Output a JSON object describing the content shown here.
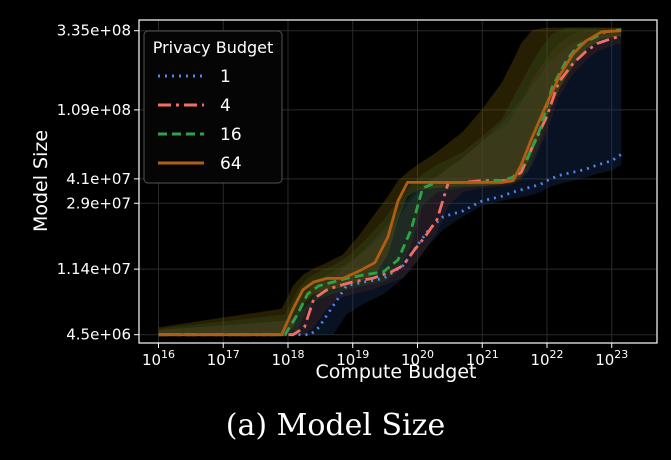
{
  "caption": "(a) Model Size",
  "chart_data": {
    "type": "line",
    "xlabel": "Compute Budget",
    "ylabel": "Model Size",
    "xscale": "log",
    "yscale": "log",
    "xlim": [
      5000000000000000.0,
      5e+23
    ],
    "ylim": [
      4000000.0,
      390000000.0
    ],
    "grid": true,
    "x_ticks": [
      {
        "value": 1e+16,
        "base": "10",
        "exp": "16"
      },
      {
        "value": 1e+17,
        "base": "10",
        "exp": "17"
      },
      {
        "value": 1e+18,
        "base": "10",
        "exp": "18"
      },
      {
        "value": 1e+19,
        "base": "10",
        "exp": "19"
      },
      {
        "value": 1e+20,
        "base": "10",
        "exp": "20"
      },
      {
        "value": 1e+21,
        "base": "10",
        "exp": "21"
      },
      {
        "value": 1e+22,
        "base": "10",
        "exp": "22"
      },
      {
        "value": 1e+23,
        "base": "10",
        "exp": "23"
      }
    ],
    "y_ticks": [
      {
        "value": 4500000.0,
        "label": "4.5e+06"
      },
      {
        "value": 11400000.0,
        "label": "1.14e+07"
      },
      {
        "value": 29000000.0,
        "label": "2.9e+07"
      },
      {
        "value": 41000000.0,
        "label": "4.1e+07"
      },
      {
        "value": 109000000.0,
        "label": "1.09e+08"
      },
      {
        "value": 335000000.0,
        "label": "3.35e+08"
      }
    ],
    "legend": {
      "title": "Privacy Budget",
      "position": "top-left"
    },
    "series": [
      {
        "name": "1",
        "color": "#4f86e8",
        "dash": "2 5",
        "band_color": "#1c3a70",
        "band_opacity": 0.3,
        "x": [
          1e+16,
          1e+18,
          2.2e+18,
          3e+18,
          5e+18,
          8e+18,
          1.5e+19,
          3e+19,
          6e+19,
          1e+20,
          1.5e+20,
          2.5e+20,
          5e+20,
          1e+21,
          2e+21,
          3e+21,
          5e+21,
          8e+21,
          1e+22,
          1.5e+22,
          2.5e+22,
          4e+22,
          6e+22,
          1e+23,
          1.4e+23
        ],
        "y": [
          4500000.0,
          4500000.0,
          4500000.0,
          5000000.0,
          6800000.0,
          9000000.0,
          9500000.0,
          10000000.0,
          12000000.0,
          16000000.0,
          20000000.0,
          24000000.0,
          26000000.0,
          30000000.0,
          32000000.0,
          34000000.0,
          36000000.0,
          38000000.0,
          40000000.0,
          43000000.0,
          45000000.0,
          47000000.0,
          50000000.0,
          53000000.0,
          58000000.0
        ],
        "y_low": [
          4500000.0,
          4500000.0,
          4500000.0,
          4500000.0,
          4500000.0,
          6000000.0,
          7000000.0,
          8000000.0,
          10000000.0,
          13000000.0,
          16000000.0,
          20000000.0,
          24000000.0,
          28000000.0,
          30000000.0,
          31000000.0,
          32000000.0,
          34000000.0,
          36000000.0,
          38000000.0,
          40000000.0,
          42000000.0,
          44000000.0,
          46000000.0,
          50000000.0
        ],
        "y_high": [
          4800000.0,
          5500000.0,
          7000000.0,
          9000000.0,
          10000000.0,
          12000000.0,
          15000000.0,
          20000000.0,
          28000000.0,
          36000000.0,
          40000000.0,
          45000000.0,
          55000000.0,
          70000000.0,
          90000000.0,
          110000000.0,
          140000000.0,
          180000000.0,
          210000000.0,
          240000000.0,
          280000000.0,
          300000000.0,
          310000000.0,
          320000000.0,
          320000000.0
        ]
      },
      {
        "name": "4",
        "color": "#f26e62",
        "dash": "13 5 3 5",
        "band_color": "#5a2a24",
        "band_opacity": 0.3,
        "x": [
          1e+16,
          1.2e+18,
          1.8e+18,
          2.5e+18,
          4e+18,
          6e+18,
          1e+19,
          2e+19,
          4e+19,
          6e+19,
          9e+19,
          1.3e+20,
          2e+20,
          3e+20,
          5e+20,
          1e+21,
          2.5e+21,
          4e+21,
          6e+21,
          1e+22,
          1.5e+22,
          2.5e+22,
          4e+22,
          6e+22,
          1e+23,
          1.4e+23
        ],
        "y": [
          4500000.0,
          4500000.0,
          5000000.0,
          7500000.0,
          8500000.0,
          9000000.0,
          9500000.0,
          10000000.0,
          11000000.0,
          12000000.0,
          15000000.0,
          18000000.0,
          23000000.0,
          39000000.0,
          39000000.0,
          40000000.0,
          40000000.0,
          45000000.0,
          65000000.0,
          100000000.0,
          160000000.0,
          210000000.0,
          250000000.0,
          280000000.0,
          300000000.0,
          310000000.0
        ],
        "y_low": [
          4500000.0,
          4500000.0,
          4500000.0,
          5000000.0,
          6500000.0,
          7500000.0,
          8000000.0,
          8500000.0,
          9500000.0,
          10000000.0,
          12000000.0,
          15000000.0,
          19000000.0,
          28000000.0,
          34000000.0,
          36000000.0,
          37000000.0,
          40000000.0,
          50000000.0,
          80000000.0,
          130000000.0,
          180000000.0,
          220000000.0,
          250000000.0,
          270000000.0,
          280000000.0
        ],
        "y_high": [
          4800000.0,
          5500000.0,
          7500000.0,
          9500000.0,
          10500000.0,
          11500000.0,
          13000000.0,
          16000000.0,
          21000000.0,
          26000000.0,
          32000000.0,
          37000000.0,
          42000000.0,
          48000000.0,
          55000000.0,
          70000000.0,
          90000000.0,
          120000000.0,
          170000000.0,
          230000000.0,
          280000000.0,
          320000000.0,
          340000000.0,
          340000000.0,
          340000000.0,
          340000000.0
        ]
      },
      {
        "name": "16",
        "color": "#2ea24a",
        "dash": "9 5",
        "band_color": "#1e5228",
        "band_opacity": 0.3,
        "x": [
          1e+16,
          9e+17,
          1.4e+18,
          2e+18,
          3e+18,
          5e+18,
          8e+18,
          1.5e+19,
          3e+19,
          5e+19,
          8e+19,
          1.2e+20,
          2e+20,
          5e+20,
          1e+21,
          2e+21,
          3e+21,
          5e+21,
          8e+21,
          1.2e+22,
          2e+22,
          3e+22,
          5e+22,
          8e+22,
          1.4e+23
        ],
        "y": [
          4500000.0,
          4500000.0,
          6000000.0,
          8000000.0,
          9000000.0,
          9500000.0,
          10000000.0,
          10500000.0,
          11000000.0,
          13000000.0,
          20000000.0,
          36000000.0,
          39000000.0,
          39000000.0,
          39000000.0,
          40000000.0,
          42000000.0,
          55000000.0,
          85000000.0,
          150000000.0,
          220000000.0,
          270000000.0,
          300000000.0,
          330000000.0,
          340000000.0
        ],
        "y_low": [
          4500000.0,
          4500000.0,
          4800000.0,
          6500000.0,
          7500000.0,
          8000000.0,
          8500000.0,
          9000000.0,
          9500000.0,
          11000000.0,
          16000000.0,
          28000000.0,
          34000000.0,
          36000000.0,
          37000000.0,
          38000000.0,
          39000000.0,
          45000000.0,
          70000000.0,
          120000000.0,
          180000000.0,
          230000000.0,
          270000000.0,
          300000000.0,
          310000000.0
        ],
        "y_high": [
          4900000.0,
          6000000.0,
          8500000.0,
          10000000.0,
          11000000.0,
          12000000.0,
          13500000.0,
          17000000.0,
          23000000.0,
          30000000.0,
          38000000.0,
          44000000.0,
          50000000.0,
          60000000.0,
          75000000.0,
          95000000.0,
          130000000.0,
          190000000.0,
          260000000.0,
          320000000.0,
          350000000.0,
          350000000.0,
          350000000.0,
          350000000.0,
          350000000.0
        ]
      },
      {
        "name": "64",
        "color": "#b05e14",
        "dash": "",
        "band_color": "#6e5a0c",
        "band_opacity": 0.35,
        "x": [
          1e+16,
          8e+17,
          1.2e+18,
          1.7e+18,
          2.5e+18,
          4e+18,
          7e+18,
          1.2e+19,
          2.2e+19,
          3.5e+19,
          5e+19,
          7e+19,
          1e+20,
          2e+20,
          5e+20,
          1e+21,
          2e+21,
          3e+21,
          4e+21,
          6e+21,
          1e+22,
          1.6e+22,
          2.5e+22,
          4e+22,
          7e+22,
          1.4e+23
        ],
        "y": [
          4500000.0,
          4500000.0,
          6500000.0,
          8500000.0,
          9500000.0,
          10000000.0,
          10000000.0,
          11000000.0,
          12500000.0,
          18000000.0,
          30000000.0,
          39000000.0,
          39000000.0,
          39000000.0,
          39000000.0,
          39000000.0,
          39000000.0,
          40000000.0,
          50000000.0,
          75000000.0,
          120000000.0,
          180000000.0,
          240000000.0,
          290000000.0,
          330000000.0,
          335000000.0
        ],
        "y_low": [
          4500000.0,
          4500000.0,
          5000000.0,
          7000000.0,
          8000000.0,
          8500000.0,
          8800000.0,
          9500000.0,
          10500000.0,
          14000000.0,
          23000000.0,
          32000000.0,
          35000000.0,
          36000000.0,
          37000000.0,
          37000000.0,
          38000000.0,
          39000000.0,
          42000000.0,
          60000000.0,
          100000000.0,
          150000000.0,
          200000000.0,
          260000000.0,
          300000000.0,
          310000000.0
        ],
        "y_high": [
          5000000.0,
          6500000.0,
          9000000.0,
          10500000.0,
          11500000.0,
          12500000.0,
          14000000.0,
          18000000.0,
          25000000.0,
          32000000.0,
          40000000.0,
          45000000.0,
          50000000.0,
          60000000.0,
          80000000.0,
          110000000.0,
          160000000.0,
          220000000.0,
          280000000.0,
          340000000.0,
          350000000.0,
          350000000.0,
          350000000.0,
          350000000.0,
          350000000.0,
          350000000.0
        ]
      }
    ]
  }
}
